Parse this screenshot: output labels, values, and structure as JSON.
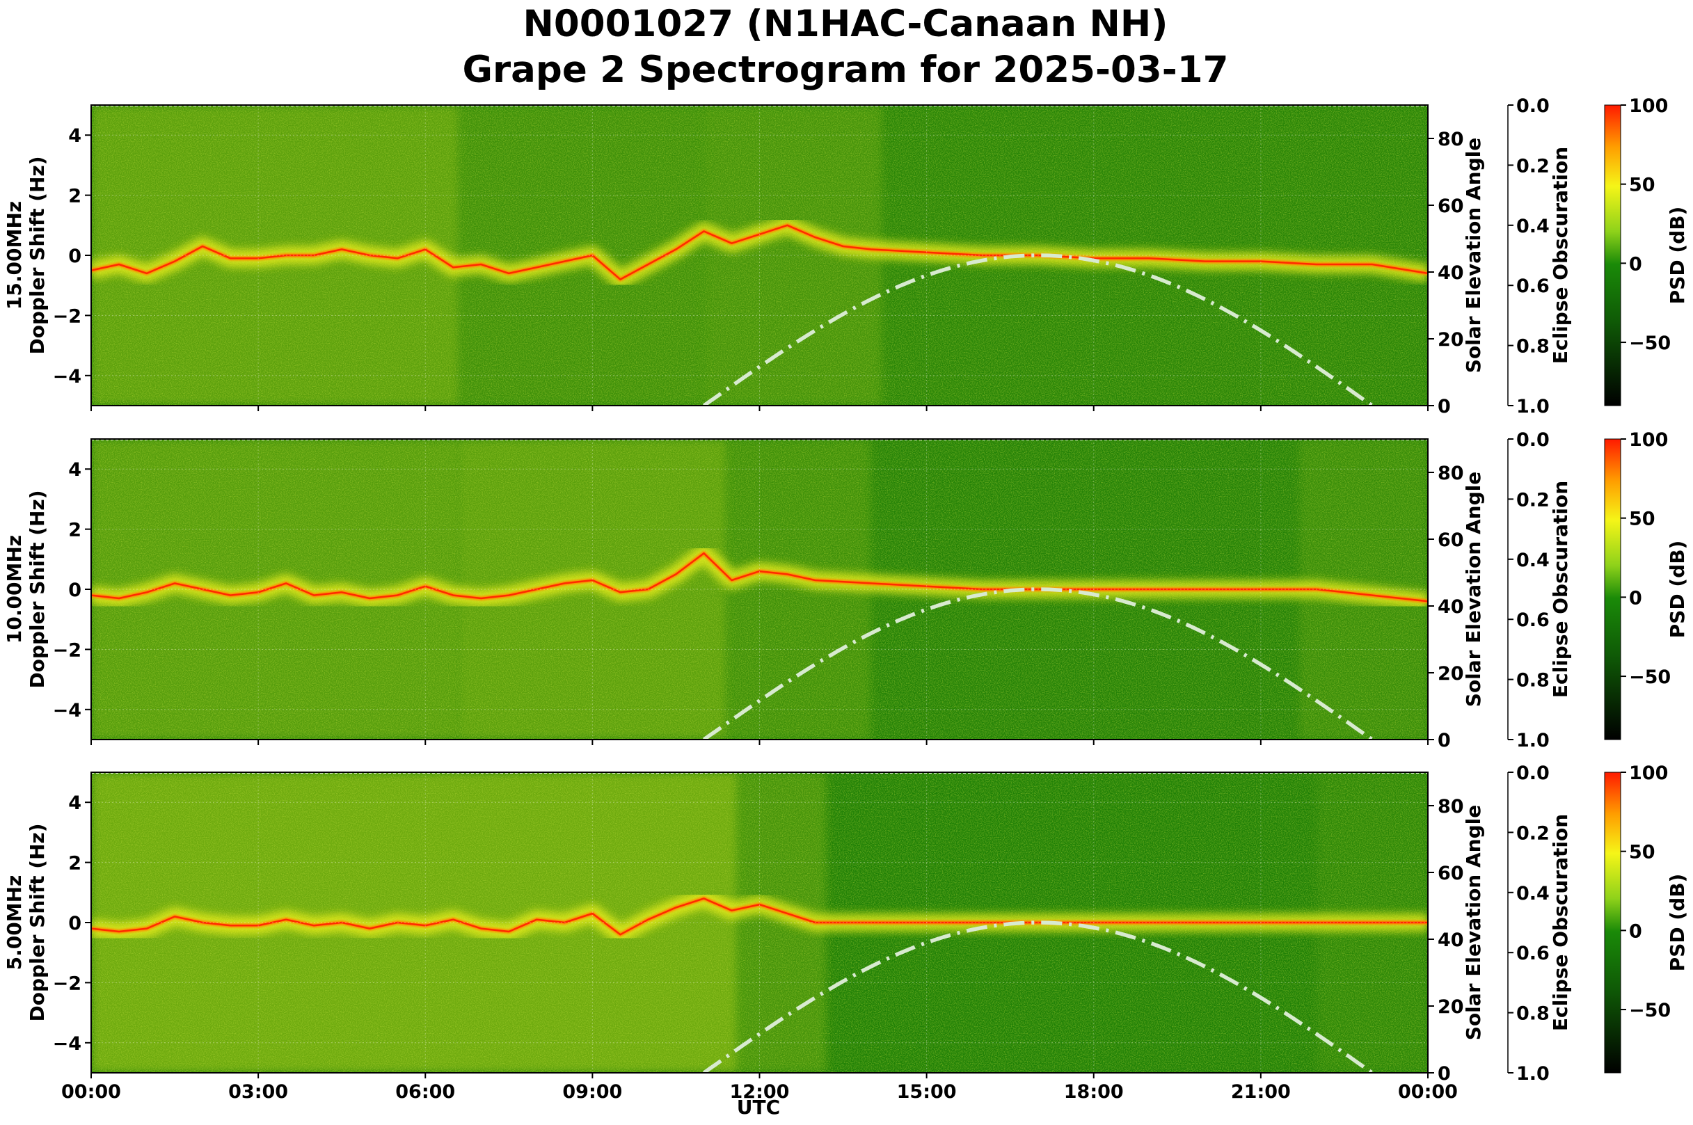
{
  "title": {
    "line1": "N0001027 (N1HAC-Canaan NH)",
    "line2": "Grape 2 Spectrogram for 2025-03-17"
  },
  "xaxis": {
    "label": "UTC",
    "ticks": [
      "00:00",
      "03:00",
      "06:00",
      "09:00",
      "12:00",
      "15:00",
      "18:00",
      "21:00",
      "00:00"
    ]
  },
  "colors": {
    "background_green": "#1a7d06",
    "yellow": "#f2f21a",
    "red": "#ff2a00",
    "sun_curve": "#d8ead0"
  },
  "chart_data": [
    {
      "type": "heatmap",
      "frequency": "15.00MHz",
      "ylabel": "Doppler Shift (Hz)",
      "ylim": [
        -5,
        5
      ],
      "yticks": [
        4,
        2,
        0,
        -2,
        -4
      ],
      "xlim_hours": [
        0,
        24
      ],
      "right_axis": {
        "label": "Solar Elevation Angle",
        "ylim": [
          0,
          90
        ],
        "ticks": [
          0,
          20,
          40,
          60,
          80
        ]
      },
      "eclipse_axis": {
        "label": "Eclipse Obscuration",
        "ylim": [
          1.0,
          0.0
        ],
        "ticks": [
          "0.0",
          "0.2",
          "0.4",
          "0.6",
          "0.8",
          "1.0"
        ]
      },
      "colorbar": {
        "label": "PSD (dB)",
        "range": [
          -90,
          100
        ],
        "ticks": [
          "100",
          "50",
          "0",
          "−50"
        ]
      },
      "doppler_trace": {
        "hours": [
          0,
          0.5,
          1,
          1.5,
          2,
          2.5,
          3,
          3.5,
          4,
          4.5,
          5,
          5.5,
          6,
          6.5,
          7,
          7.5,
          8,
          8.5,
          9,
          9.5,
          10,
          10.5,
          11,
          11.5,
          12,
          12.5,
          13,
          13.5,
          14,
          15,
          16,
          17,
          18,
          19,
          20,
          21,
          22,
          23,
          24
        ],
        "hz": [
          -0.5,
          -0.3,
          -0.6,
          -0.2,
          0.3,
          -0.1,
          -0.1,
          0.0,
          0.0,
          0.2,
          0.0,
          -0.1,
          0.2,
          -0.4,
          -0.3,
          -0.6,
          -0.4,
          -0.2,
          0.0,
          -0.8,
          -0.3,
          0.2,
          0.8,
          0.4,
          0.7,
          1.0,
          0.6,
          0.3,
          0.2,
          0.1,
          0.0,
          0.0,
          -0.1,
          -0.1,
          -0.2,
          -0.2,
          -0.3,
          -0.3,
          -0.6
        ]
      },
      "solar_elevation": {
        "max_deg": 45,
        "peak_hour": 17.0,
        "rise_hour": 11.0,
        "set_hour": 23.0
      }
    },
    {
      "type": "heatmap",
      "frequency": "10.00MHz",
      "ylabel": "Doppler Shift (Hz)",
      "ylim": [
        -5,
        5
      ],
      "yticks": [
        4,
        2,
        0,
        -2,
        -4
      ],
      "xlim_hours": [
        0,
        24
      ],
      "right_axis": {
        "label": "Solar Elevation Angle",
        "ylim": [
          0,
          90
        ],
        "ticks": [
          0,
          20,
          40,
          60,
          80
        ]
      },
      "eclipse_axis": {
        "label": "Eclipse Obscuration",
        "ylim": [
          1.0,
          0.0
        ],
        "ticks": [
          "0.0",
          "0.2",
          "0.4",
          "0.6",
          "0.8",
          "1.0"
        ]
      },
      "colorbar": {
        "label": "PSD (dB)",
        "range": [
          -90,
          100
        ],
        "ticks": [
          "100",
          "50",
          "0",
          "−50"
        ]
      },
      "doppler_trace": {
        "hours": [
          0,
          0.5,
          1,
          1.5,
          2,
          2.5,
          3,
          3.5,
          4,
          4.5,
          5,
          5.5,
          6,
          6.5,
          7,
          7.5,
          8,
          8.5,
          9,
          9.5,
          10,
          10.5,
          11,
          11.5,
          12,
          12.5,
          13,
          14,
          15,
          16,
          17,
          18,
          19,
          20,
          21,
          22,
          23,
          24
        ],
        "hz": [
          -0.2,
          -0.3,
          -0.1,
          0.2,
          0.0,
          -0.2,
          -0.1,
          0.2,
          -0.2,
          -0.1,
          -0.3,
          -0.2,
          0.1,
          -0.2,
          -0.3,
          -0.2,
          0.0,
          0.2,
          0.3,
          -0.1,
          0.0,
          0.5,
          1.2,
          0.3,
          0.6,
          0.5,
          0.3,
          0.2,
          0.1,
          0.0,
          0.0,
          0.0,
          0.0,
          0.0,
          0.0,
          0.0,
          -0.2,
          -0.4
        ]
      },
      "solar_elevation": {
        "max_deg": 45,
        "peak_hour": 17.0,
        "rise_hour": 11.0,
        "set_hour": 23.0
      }
    },
    {
      "type": "heatmap",
      "frequency": "5.00MHz",
      "ylabel": "Doppler Shift (Hz)",
      "ylim": [
        -5,
        5
      ],
      "yticks": [
        4,
        2,
        0,
        -2,
        -4
      ],
      "xlim_hours": [
        0,
        24
      ],
      "right_axis": {
        "label": "Solar Elevation Angle",
        "ylim": [
          0,
          90
        ],
        "ticks": [
          0,
          20,
          40,
          60,
          80
        ]
      },
      "eclipse_axis": {
        "label": "Eclipse Obscuration",
        "ylim": [
          1.0,
          0.0
        ],
        "ticks": [
          "0.0",
          "0.2",
          "0.4",
          "0.6",
          "0.8",
          "1.0"
        ]
      },
      "colorbar": {
        "label": "PSD (dB)",
        "range": [
          -90,
          100
        ],
        "ticks": [
          "100",
          "50",
          "0",
          "−50"
        ]
      },
      "doppler_trace": {
        "hours": [
          0,
          0.5,
          1,
          1.5,
          2,
          2.5,
          3,
          3.5,
          4,
          4.5,
          5,
          5.5,
          6,
          6.5,
          7,
          7.5,
          8,
          8.5,
          9,
          9.5,
          10,
          10.5,
          11,
          11.5,
          12,
          13,
          14,
          15,
          16,
          17,
          18,
          19,
          20,
          21,
          22,
          23,
          24
        ],
        "hz": [
          -0.2,
          -0.3,
          -0.2,
          0.2,
          0.0,
          -0.1,
          -0.1,
          0.1,
          -0.1,
          0.0,
          -0.2,
          0.0,
          -0.1,
          0.1,
          -0.2,
          -0.3,
          0.1,
          0.0,
          0.3,
          -0.4,
          0.1,
          0.5,
          0.8,
          0.4,
          0.6,
          0.0,
          0.0,
          0.0,
          0.0,
          0.0,
          0.0,
          0.0,
          0.0,
          0.0,
          0.0,
          0.0,
          0.0
        ]
      },
      "solar_elevation": {
        "max_deg": 45,
        "peak_hour": 17.0,
        "rise_hour": 11.0,
        "set_hour": 23.0
      }
    }
  ]
}
